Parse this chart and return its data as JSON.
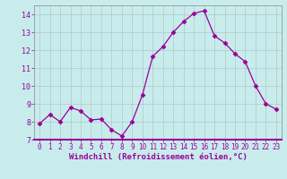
{
  "x": [
    0,
    1,
    2,
    3,
    4,
    5,
    6,
    7,
    8,
    9,
    10,
    11,
    12,
    13,
    14,
    15,
    16,
    17,
    18,
    19,
    20,
    21,
    22,
    23
  ],
  "y": [
    7.9,
    8.4,
    8.0,
    8.8,
    8.6,
    8.1,
    8.15,
    7.55,
    7.2,
    8.0,
    9.5,
    11.65,
    12.2,
    13.0,
    13.6,
    14.05,
    14.2,
    12.8,
    12.4,
    11.8,
    11.35,
    10.0,
    9.0,
    8.7
  ],
  "line_color": "#990099",
  "marker": "D",
  "marker_size": 2.5,
  "bg_color": "#c8ecec",
  "grid_color": "#b0c8c8",
  "xlabel": "Windchill (Refroidissement éolien,°C)",
  "xlabel_color": "#990099",
  "tick_color": "#990099",
  "ylim": [
    7,
    14.5
  ],
  "xlim": [
    -0.5,
    23.5
  ],
  "yticks": [
    7,
    8,
    9,
    10,
    11,
    12,
    13,
    14
  ],
  "xticks": [
    0,
    1,
    2,
    3,
    4,
    5,
    6,
    7,
    8,
    9,
    10,
    11,
    12,
    13,
    14,
    15,
    16,
    17,
    18,
    19,
    20,
    21,
    22,
    23
  ],
  "spine_color": "#990099",
  "tick_fontsize": 5.5,
  "ytick_fontsize": 6.0,
  "xlabel_fontsize": 6.5
}
